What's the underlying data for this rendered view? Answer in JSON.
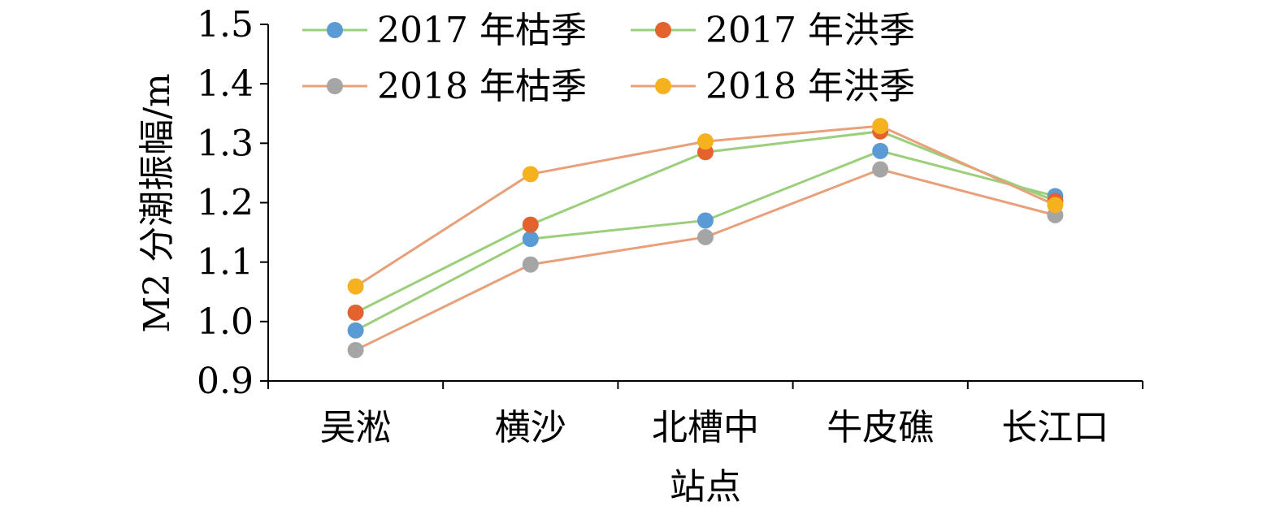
{
  "chart_data": {
    "type": "line",
    "categories": [
      "吴淞",
      "横沙",
      "北槽中",
      "牛皮礁",
      "长江口"
    ],
    "xlabel": "站点",
    "ylabel": "M2 分潮振幅/m",
    "ylim": [
      0.9,
      1.5
    ],
    "yticks": [
      "0.9",
      "1.0",
      "1.1",
      "1.2",
      "1.3",
      "1.4",
      "1.5"
    ],
    "legend_position": "top",
    "grid": false,
    "series": [
      {
        "name": "2017 年枯季",
        "values": [
          0.985,
          1.139,
          1.17,
          1.287,
          1.211
        ],
        "line_color": "#9bcf7c",
        "marker_color": "#5b9bd5"
      },
      {
        "name": "2017 年洪季",
        "values": [
          1.015,
          1.163,
          1.285,
          1.32,
          1.203
        ],
        "line_color": "#9bcf7c",
        "marker_color": "#e3622e"
      },
      {
        "name": "2018 年枯季",
        "values": [
          0.952,
          1.096,
          1.142,
          1.256,
          1.179
        ],
        "line_color": "#e8a07a",
        "marker_color": "#a5a5a5"
      },
      {
        "name": "2018 年洪季",
        "values": [
          1.059,
          1.248,
          1.303,
          1.329,
          1.196
        ],
        "line_color": "#e8a07a",
        "marker_color": "#f5b21e"
      }
    ]
  }
}
